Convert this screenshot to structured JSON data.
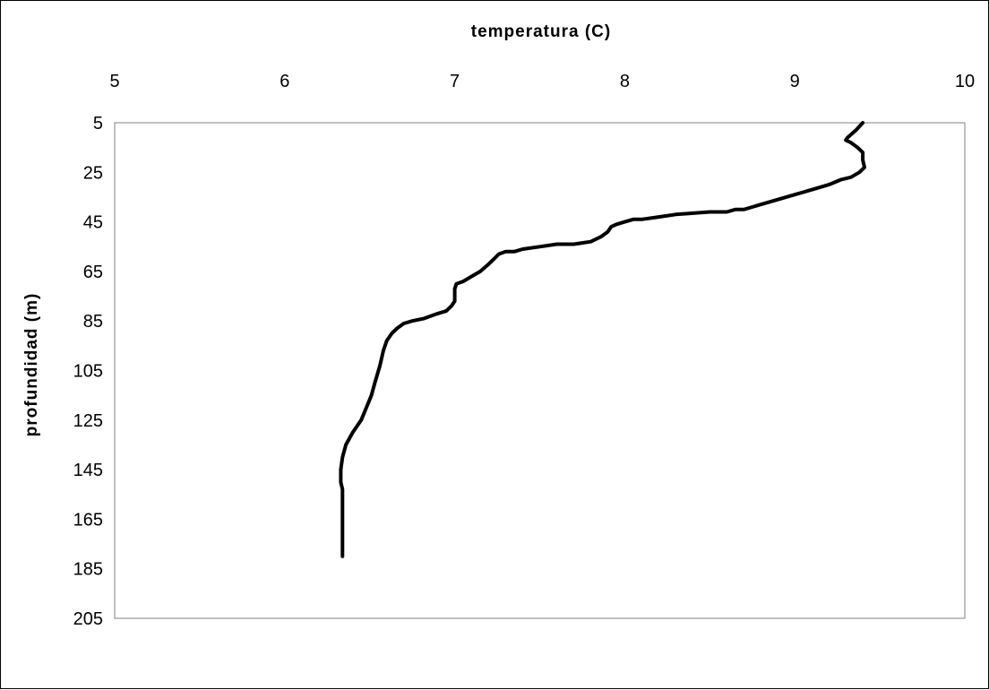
{
  "chart_data": {
    "type": "line",
    "xlabel": "temperatura (C)",
    "ylabel": "profundidad (m)",
    "x_axis_position": "top",
    "y_axis_inverted": true,
    "xlim": [
      5,
      10
    ],
    "ylim": [
      5,
      205
    ],
    "x_ticks": [
      "5",
      "6",
      "7",
      "8",
      "9",
      "10"
    ],
    "y_ticks": [
      "5",
      "25",
      "45",
      "65",
      "85",
      "105",
      "125",
      "145",
      "165",
      "185",
      "205"
    ],
    "grid": false,
    "legend": "none",
    "series": [
      {
        "color": "#000000",
        "points": [
          [
            9.4,
            5
          ],
          [
            9.36,
            8
          ],
          [
            9.31,
            11
          ],
          [
            9.3,
            12
          ],
          [
            9.33,
            13
          ],
          [
            9.37,
            15
          ],
          [
            9.4,
            17
          ],
          [
            9.4,
            20
          ],
          [
            9.41,
            23
          ],
          [
            9.38,
            25
          ],
          [
            9.33,
            27
          ],
          [
            9.27,
            28
          ],
          [
            9.2,
            30
          ],
          [
            9.1,
            32
          ],
          [
            9.0,
            34
          ],
          [
            8.9,
            36
          ],
          [
            8.8,
            38
          ],
          [
            8.75,
            39
          ],
          [
            8.7,
            40
          ],
          [
            8.65,
            40
          ],
          [
            8.6,
            41
          ],
          [
            8.5,
            41
          ],
          [
            8.3,
            42
          ],
          [
            8.2,
            43
          ],
          [
            8.1,
            44
          ],
          [
            8.05,
            44
          ],
          [
            8.0,
            45
          ],
          [
            7.95,
            46
          ],
          [
            7.92,
            47
          ],
          [
            7.9,
            49
          ],
          [
            7.86,
            51
          ],
          [
            7.8,
            53
          ],
          [
            7.7,
            54
          ],
          [
            7.6,
            54
          ],
          [
            7.5,
            55
          ],
          [
            7.4,
            56
          ],
          [
            7.35,
            57
          ],
          [
            7.3,
            57
          ],
          [
            7.26,
            58
          ],
          [
            7.23,
            60
          ],
          [
            7.2,
            62
          ],
          [
            7.15,
            65
          ],
          [
            7.1,
            67
          ],
          [
            7.05,
            69
          ],
          [
            7.01,
            70
          ],
          [
            7.0,
            72
          ],
          [
            7.0,
            77
          ],
          [
            6.98,
            79
          ],
          [
            6.95,
            81
          ],
          [
            6.9,
            82
          ],
          [
            6.82,
            84
          ],
          [
            6.75,
            85
          ],
          [
            6.7,
            86
          ],
          [
            6.66,
            88
          ],
          [
            6.63,
            90
          ],
          [
            6.6,
            93
          ],
          [
            6.58,
            97
          ],
          [
            6.56,
            103
          ],
          [
            6.53,
            110
          ],
          [
            6.51,
            115
          ],
          [
            6.48,
            120
          ],
          [
            6.45,
            125
          ],
          [
            6.4,
            130
          ],
          [
            6.36,
            135
          ],
          [
            6.34,
            140
          ],
          [
            6.33,
            145
          ],
          [
            6.33,
            150
          ],
          [
            6.34,
            153
          ],
          [
            6.34,
            160
          ],
          [
            6.34,
            170
          ],
          [
            6.34,
            180
          ]
        ]
      }
    ]
  }
}
